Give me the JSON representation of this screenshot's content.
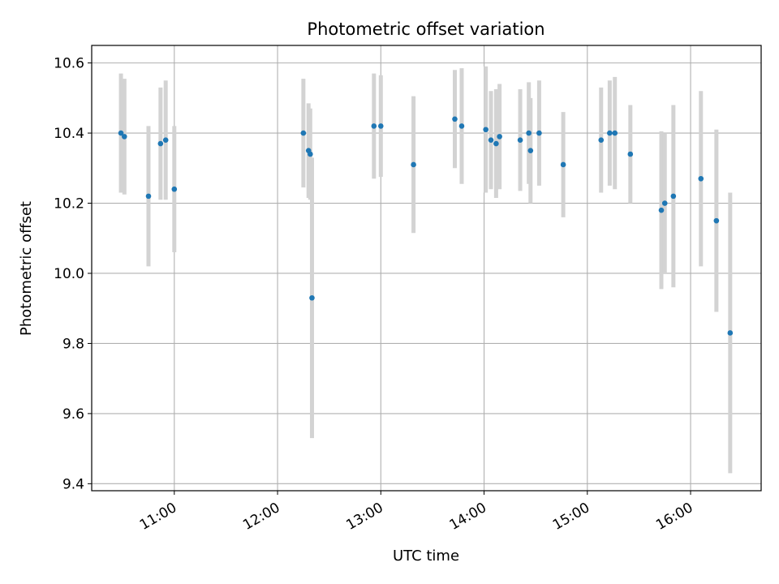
{
  "chart_data": {
    "type": "scatter",
    "title": "Photometric offset variation",
    "xlabel": "UTC time",
    "ylabel": "Photometric offset",
    "xlim": [
      "10:12",
      "16:41"
    ],
    "ylim": [
      9.38,
      10.65
    ],
    "x_ticks": [
      "11:00",
      "12:00",
      "13:00",
      "14:00",
      "15:00",
      "16:00"
    ],
    "y_ticks": [
      9.4,
      9.6,
      9.8,
      10.0,
      10.2,
      10.4,
      10.6
    ],
    "grid": true,
    "colors": {
      "point": "#1f77b4",
      "errorbar": "#d3d3d3",
      "grid": "#b0b0b0"
    },
    "series": [
      {
        "points": [
          {
            "x": "10:29",
            "y": 10.4,
            "err": 0.17
          },
          {
            "x": "10:31",
            "y": 10.39,
            "err": 0.165
          },
          {
            "x": "10:45",
            "y": 10.22,
            "err": 0.2
          },
          {
            "x": "10:52",
            "y": 10.37,
            "err": 0.16
          },
          {
            "x": "10:55",
            "y": 10.38,
            "err": 0.17
          },
          {
            "x": "11:00",
            "y": 10.24,
            "err": 0.18
          },
          {
            "x": "12:15",
            "y": 10.4,
            "err": 0.155
          },
          {
            "x": "12:18",
            "y": 10.35,
            "err": 0.135
          },
          {
            "x": "12:19",
            "y": 10.34,
            "err": 0.13
          },
          {
            "x": "12:20",
            "y": 9.93,
            "err": 0.4
          },
          {
            "x": "12:56",
            "y": 10.42,
            "err": 0.15
          },
          {
            "x": "13:00",
            "y": 10.42,
            "err": 0.145
          },
          {
            "x": "13:19",
            "y": 10.31,
            "err": 0.195
          },
          {
            "x": "13:43",
            "y": 10.44,
            "err": 0.14
          },
          {
            "x": "13:47",
            "y": 10.42,
            "err": 0.165
          },
          {
            "x": "14:01",
            "y": 10.41,
            "err": 0.18
          },
          {
            "x": "14:04",
            "y": 10.38,
            "err": 0.14
          },
          {
            "x": "14:07",
            "y": 10.37,
            "err": 0.155
          },
          {
            "x": "14:09",
            "y": 10.39,
            "err": 0.15
          },
          {
            "x": "14:21",
            "y": 10.38,
            "err": 0.145
          },
          {
            "x": "14:26",
            "y": 10.4,
            "err": 0.145
          },
          {
            "x": "14:27",
            "y": 10.35,
            "err": 0.15
          },
          {
            "x": "14:32",
            "y": 10.4,
            "err": 0.15
          },
          {
            "x": "14:46",
            "y": 10.31,
            "err": 0.15
          },
          {
            "x": "15:08",
            "y": 10.38,
            "err": 0.15
          },
          {
            "x": "15:13",
            "y": 10.4,
            "err": 0.15
          },
          {
            "x": "15:16",
            "y": 10.4,
            "err": 0.16
          },
          {
            "x": "15:25",
            "y": 10.34,
            "err": 0.14
          },
          {
            "x": "15:43",
            "y": 10.18,
            "err": 0.225
          },
          {
            "x": "15:45",
            "y": 10.2,
            "err": 0.2
          },
          {
            "x": "15:50",
            "y": 10.22,
            "err": 0.26
          },
          {
            "x": "16:06",
            "y": 10.27,
            "err": 0.25
          },
          {
            "x": "16:15",
            "y": 10.15,
            "err": 0.26
          },
          {
            "x": "16:23",
            "y": 9.83,
            "err": 0.4
          }
        ]
      }
    ]
  }
}
